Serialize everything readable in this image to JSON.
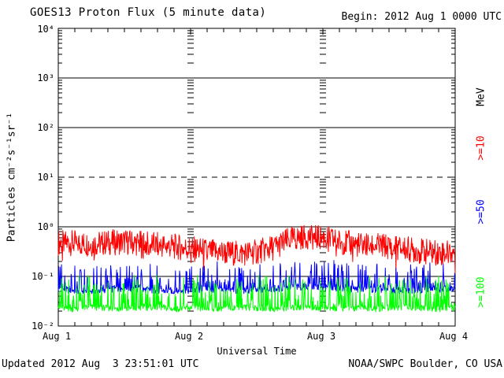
{
  "window": {
    "title": "GOES13 Proton Flux (5 minute data)",
    "begin_label": "Begin: 2012 Aug 1 0000 UTC"
  },
  "footer": {
    "updated": "Updated 2012 Aug  3 23:51:01 UTC",
    "source": "NOAA/SWPC Boulder, CO USA"
  },
  "axes": {
    "y_label": "Particles cm⁻²s⁻¹sr⁻¹",
    "y_ticks": [
      "10⁴",
      "10³",
      "10²",
      "10¹",
      "10⁰",
      "10⁻¹",
      "10⁻²"
    ],
    "x_label": "Universal Time",
    "x_ticks": [
      "Aug 1",
      "Aug 2",
      "Aug 3",
      "Aug 4"
    ],
    "unit_label": "MeV"
  },
  "legend": {
    "items": [
      {
        "label": ">=10",
        "color": "#ff0000"
      },
      {
        "label": ">=50",
        "color": "#0000ff"
      },
      {
        "label": ">=100",
        "color": "#00ff00"
      }
    ]
  },
  "chart_data": {
    "type": "line",
    "title": "GOES13 Proton Flux (5 minute data)",
    "x_axis": {
      "label": "Universal Time",
      "start": "2012 Aug 1 0000 UTC",
      "end": "2012 Aug 4 0000 UTC",
      "tick_labels": [
        "Aug 1",
        "Aug 2",
        "Aug 3",
        "Aug 4"
      ],
      "hours_span": 72,
      "minor_tick_hours": 3,
      "day_boundary_hours": [
        24,
        48
      ]
    },
    "y_axis": {
      "label": "Particles cm⁻²s⁻¹sr⁻¹",
      "scale": "log",
      "ylim": [
        0.01,
        10000
      ],
      "solid_gridlines": [
        1000,
        100,
        1,
        0.1
      ],
      "dashed_gridlines": [
        10
      ]
    },
    "sample_interval_hours": 3,
    "cadence_minutes": 5,
    "series": [
      {
        "name": ">=10 MeV",
        "color": "#ff0000",
        "typical_range": [
          0.12,
          1.0
        ],
        "values": [
          0.48,
          0.47,
          0.45,
          0.48,
          0.5,
          0.46,
          0.43,
          0.4,
          0.36,
          0.32,
          0.3,
          0.29,
          0.31,
          0.38,
          0.55,
          0.65,
          0.6,
          0.5,
          0.44,
          0.42,
          0.4,
          0.36,
          0.32,
          0.3,
          0.31
        ]
      },
      {
        "name": ">=50 MeV",
        "color": "#0000ff",
        "typical_range": [
          0.05,
          0.2
        ],
        "values": [
          0.055,
          0.052,
          0.05,
          0.055,
          0.058,
          0.054,
          0.052,
          0.05,
          0.052,
          0.055,
          0.053,
          0.05,
          0.052,
          0.056,
          0.06,
          0.062,
          0.06,
          0.058,
          0.056,
          0.055,
          0.053,
          0.052,
          0.054,
          0.056,
          0.055
        ]
      },
      {
        "name": ">=100 MeV",
        "color": "#00ff00",
        "typical_range": [
          0.02,
          0.1
        ],
        "values": [
          0.023,
          0.022,
          0.024,
          0.023,
          0.022,
          0.023,
          0.024,
          0.022,
          0.023,
          0.022,
          0.023,
          0.024,
          0.023,
          0.022,
          0.023,
          0.024,
          0.023,
          0.022,
          0.023,
          0.022,
          0.023,
          0.024,
          0.023,
          0.022,
          0.023
        ]
      }
    ],
    "noise_model": {
      "steps": 864,
      "per_series": [
        {
          "jitter_log": 0.26,
          "dip_threshold": 0.96,
          "dip_scale": 9.5,
          "max": 1.06,
          "min": 0.095
        },
        {
          "jitter_log": 0.07,
          "spike_threshold": 0.7,
          "spike_gain": 1.7,
          "max": 0.21,
          "min": 0.045
        },
        {
          "jitter_log": 0.06,
          "spike_threshold": 0.68,
          "spike_gain": 2.0,
          "max": 0.105,
          "min": 0.018
        }
      ]
    }
  }
}
